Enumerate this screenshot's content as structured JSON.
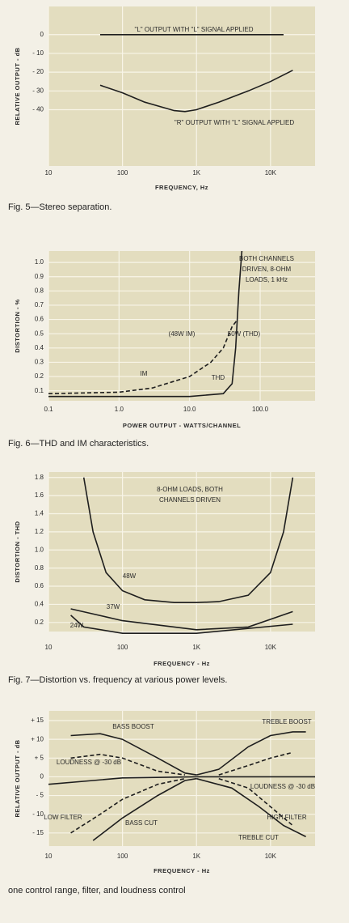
{
  "chart_data": [
    {
      "type": "line",
      "caption": "Fig. 5—Stereo separation.",
      "ylabel": "RELATIVE OUTPUT - dB",
      "xlabel": "FREQUENCY, Hz",
      "xscale": "log",
      "xlim": [
        10,
        40000
      ],
      "ylim": [
        -70,
        15
      ],
      "grid": true,
      "xticks": [
        10,
        {
          "value": 100,
          "label": "100"
        },
        {
          "value": 1000,
          "label": "1K"
        },
        {
          "value": 10000,
          "label": "10K"
        }
      ],
      "yticks": [
        0,
        {
          "value": -10,
          "label": "- 10"
        },
        {
          "value": -20,
          "label": "- 20"
        },
        {
          "value": -30,
          "label": "- 30"
        },
        {
          "value": -40,
          "label": "- 40"
        }
      ],
      "annotations": [
        "\"L\" OUTPUT WITH \"L\" SIGNAL APPLIED",
        "\"R\" OUTPUT WITH \"L\" SIGNAL APPLIED"
      ],
      "series": [
        {
          "color": "#1e1e1e",
          "dash": false,
          "x": [
            50,
            15000
          ],
          "values": [
            0,
            0
          ]
        },
        {
          "color": "#1e1e1e",
          "dash": false,
          "x": [
            50,
            100,
            200,
            500,
            700,
            1000,
            2000,
            5000,
            10000,
            20000
          ],
          "values": [
            -27,
            -31,
            -36,
            -40.5,
            -41,
            -40,
            -36,
            -30,
            -25,
            -19
          ]
        }
      ]
    },
    {
      "type": "line",
      "caption": "Fig. 6—THD and IM characteristics.",
      "ylabel": "DISTORTION - %",
      "xlabel": "POWER OUTPUT - WATTS/CHANNEL",
      "xscale": "log",
      "xlim": [
        0.1,
        600
      ],
      "ylim": [
        0.03,
        1.08
      ],
      "grid": true,
      "xticks": [
        0.1,
        {
          "value": 1,
          "label": "1.0"
        },
        {
          "value": 10,
          "label": "10.0"
        },
        {
          "value": 100,
          "label": "100.0"
        }
      ],
      "yticks": [
        0.1,
        0.2,
        0.3,
        0.4,
        0.5,
        0.6,
        0.7,
        0.8,
        0.9,
        {
          "value": 1,
          "label": "1.0"
        }
      ],
      "annotations": [
        "BOTH CHANNELS",
        "DRIVEN, 8-OHM",
        "LOADS, 1 kHz",
        "(48W IM)",
        "50W (THD)",
        "IM",
        "THD"
      ],
      "series": [
        {
          "color": "#1e1e1e",
          "dash": false,
          "x": [
            0.1,
            1,
            10,
            30,
            40,
            45,
            50,
            55
          ],
          "values": [
            0.06,
            0.06,
            0.06,
            0.08,
            0.15,
            0.4,
            0.8,
            1.08
          ]
        },
        {
          "color": "#1e1e1e",
          "dash": true,
          "x": [
            0.1,
            1,
            3,
            10,
            20,
            30,
            40,
            48
          ],
          "values": [
            0.08,
            0.09,
            0.12,
            0.2,
            0.3,
            0.4,
            0.55,
            0.6
          ]
        }
      ]
    },
    {
      "type": "line",
      "caption": "Fig. 7—Distortion vs. frequency at various power levels.",
      "ylabel": "DISTORTION - THD",
      "xlabel": "FREQUENCY - Hz",
      "xscale": "log",
      "xlim": [
        10,
        40000
      ],
      "ylim": [
        0.1,
        1.86
      ],
      "grid": true,
      "xticks": [
        10,
        {
          "value": 100,
          "label": "100"
        },
        {
          "value": 1000,
          "label": "1K"
        },
        {
          "value": 10000,
          "label": "10K"
        }
      ],
      "yticks": [
        0.2,
        0.4,
        0.6,
        0.8,
        {
          "value": 1,
          "label": "1.0"
        },
        1.2,
        1.4,
        1.6,
        1.8
      ],
      "annotations": [
        "8-OHM LOADS, BOTH",
        "CHANNELS DRIVEN"
      ],
      "series": [
        {
          "name": "48W",
          "color": "#1e1e1e",
          "dash": false,
          "x": [
            30,
            40,
            60,
            100,
            200,
            500,
            1000,
            2000,
            5000,
            10000,
            15000,
            20000
          ],
          "values": [
            1.8,
            1.2,
            0.75,
            0.55,
            0.45,
            0.42,
            0.42,
            0.43,
            0.5,
            0.75,
            1.2,
            1.8
          ]
        },
        {
          "name": "37W",
          "color": "#1e1e1e",
          "dash": false,
          "x": [
            20,
            100,
            1000,
            5000,
            20000
          ],
          "values": [
            0.35,
            0.22,
            0.12,
            0.15,
            0.32
          ]
        },
        {
          "name": "24W",
          "color": "#1e1e1e",
          "dash": false,
          "x": [
            20,
            30,
            100,
            1000,
            20000
          ],
          "values": [
            0.28,
            0.15,
            0.08,
            0.08,
            0.18
          ]
        }
      ]
    },
    {
      "type": "line",
      "caption": "one control range, filter, and loudness control",
      "ylabel": "RELATIVE OUTPUT - dB",
      "xlabel": "FREQUENCY - Hz",
      "xscale": "log",
      "xlim": [
        10,
        40000
      ],
      "ylim": [
        -18.5,
        17.6
      ],
      "grid": true,
      "xticks": [
        10,
        100,
        {
          "value": 1000,
          "label": "1K"
        },
        {
          "value": 10000,
          "label": "10K"
        }
      ],
      "yticks": [
        {
          "value": 15,
          "label": "+ 15"
        },
        {
          "value": 10,
          "label": "+ 10"
        },
        {
          "value": 5,
          "label": "+ 5"
        },
        0,
        {
          "value": -5,
          "label": "- 5"
        },
        {
          "value": -10,
          "label": "- 10"
        },
        {
          "value": -15,
          "label": "- 15"
        }
      ],
      "annotations": [],
      "series": [
        {
          "color": "#1e1e1e",
          "dash": false,
          "x": [
            10,
            40,
            100,
            1000,
            10000,
            40000
          ],
          "values": [
            -2,
            -1,
            -0.3,
            0,
            0,
            0
          ]
        },
        {
          "name": "BASS BOOST",
          "color": "#1e1e1e",
          "dash": false,
          "x": [
            20,
            50,
            100,
            300,
            700,
            1000
          ],
          "values": [
            11,
            11.5,
            10,
            5,
            1,
            0.5
          ]
        },
        {
          "name": "TREBLE BOOST",
          "color": "#1e1e1e",
          "dash": false,
          "x": [
            1000,
            2000,
            5000,
            10000,
            20000,
            30000
          ],
          "values": [
            0.5,
            2,
            8,
            11,
            12,
            12
          ]
        },
        {
          "name": "LOUDNESS @ -30 dB",
          "color": "#1e1e1e",
          "dash": true,
          "x": [
            20,
            50,
            100,
            300,
            700
          ],
          "values": [
            5,
            6,
            5,
            1.5,
            0.5
          ]
        },
        {
          "name": "LOUDNESS @ -30 dB",
          "color": "#1e1e1e",
          "dash": true,
          "x": [
            2000,
            5000,
            10000,
            20000
          ],
          "values": [
            0.5,
            3,
            5,
            6.5
          ]
        },
        {
          "name": "LOW FILTER",
          "color": "#1e1e1e",
          "dash": true,
          "x": [
            20,
            50,
            100,
            300,
            700
          ],
          "values": [
            -15,
            -10,
            -6,
            -2,
            -0.5
          ]
        },
        {
          "name": "BASS CUT",
          "color": "#1e1e1e",
          "dash": false,
          "x": [
            40,
            100,
            300,
            700,
            1000
          ],
          "values": [
            -17,
            -11,
            -5,
            -1,
            -0.5
          ]
        },
        {
          "name": "HIGH FILTER",
          "color": "#1e1e1e",
          "dash": true,
          "x": [
            2000,
            5000,
            10000,
            20000
          ],
          "values": [
            -0.5,
            -3,
            -8,
            -13
          ]
        },
        {
          "name": "TREBLE CUT",
          "color": "#1e1e1e",
          "dash": false,
          "x": [
            1000,
            3000,
            7000,
            15000,
            30000
          ],
          "values": [
            -0.5,
            -3,
            -8,
            -13,
            -16
          ]
        }
      ]
    }
  ]
}
